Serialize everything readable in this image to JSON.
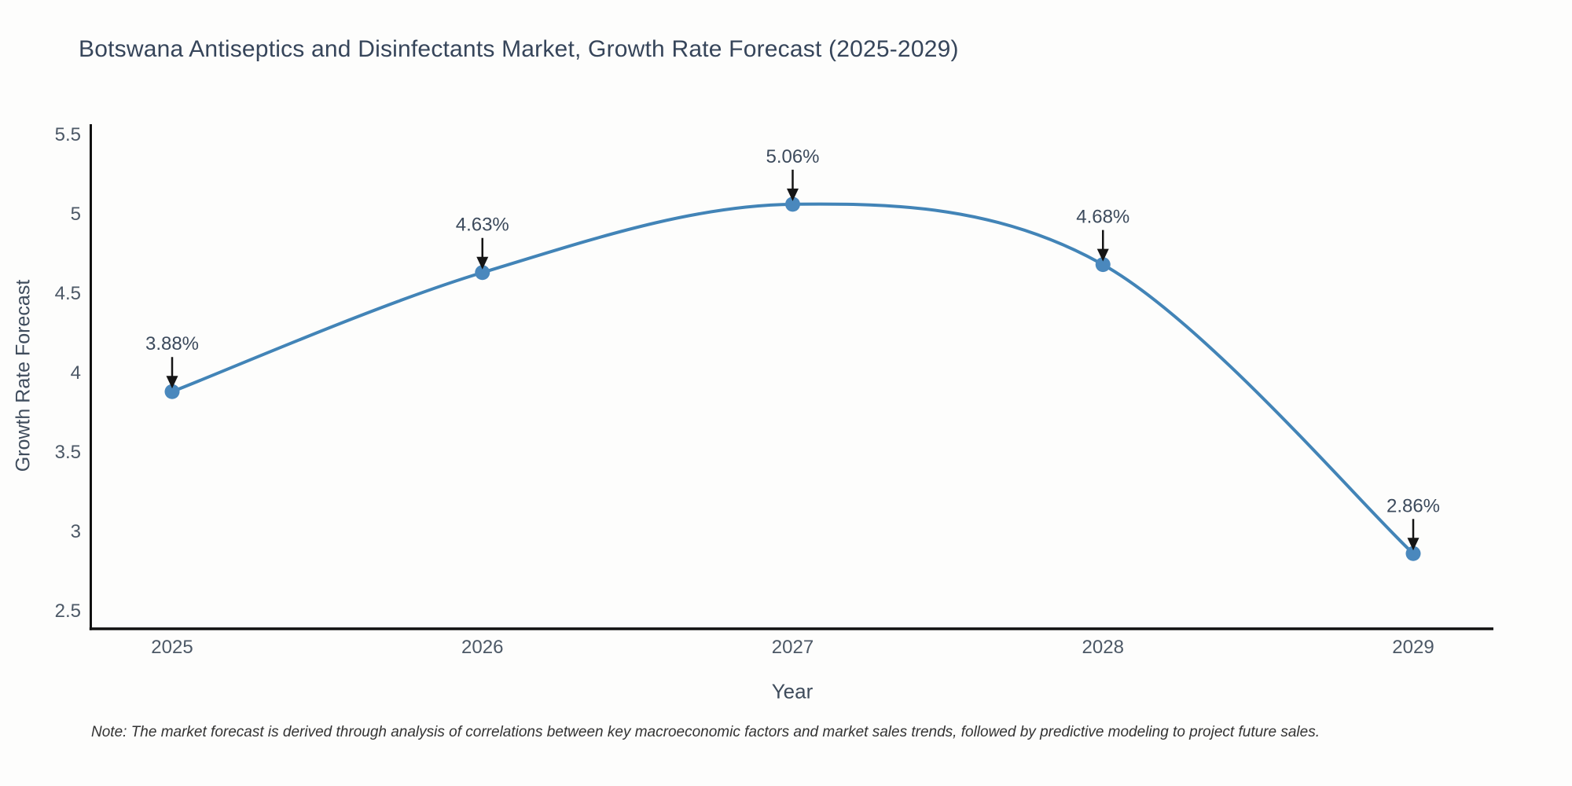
{
  "note": "Note: The market forecast is derived through analysis of correlations between key macroeconomic factors and market sales trends, followed by predictive modeling to project future sales.",
  "chart_data": {
    "type": "line",
    "title": "Botswana Antiseptics and Disinfectants Market, Growth Rate Forecast (2025-2029)",
    "xlabel": "Year",
    "ylabel": "Growth Rate Forecast",
    "categories": [
      "2025",
      "2026",
      "2027",
      "2028",
      "2029"
    ],
    "values": [
      3.88,
      4.63,
      5.06,
      4.68,
      2.86
    ],
    "point_labels": [
      "3.88%",
      "4.63%",
      "5.06%",
      "4.68%",
      "2.86%"
    ],
    "yticks": [
      "5.5",
      "5",
      "4.5",
      "4",
      "3.5",
      "3",
      "2.5"
    ],
    "ylim": [
      2.39,
      5.56
    ],
    "grid": false,
    "legend": "none",
    "line_shape": "spline",
    "colors": {
      "line": "#4284b7",
      "marker": "#4a88bd",
      "axis": "#111111",
      "arrow": "#151515",
      "tick_label": "#4c5866",
      "annotation_text": "#3c4a5c"
    }
  }
}
